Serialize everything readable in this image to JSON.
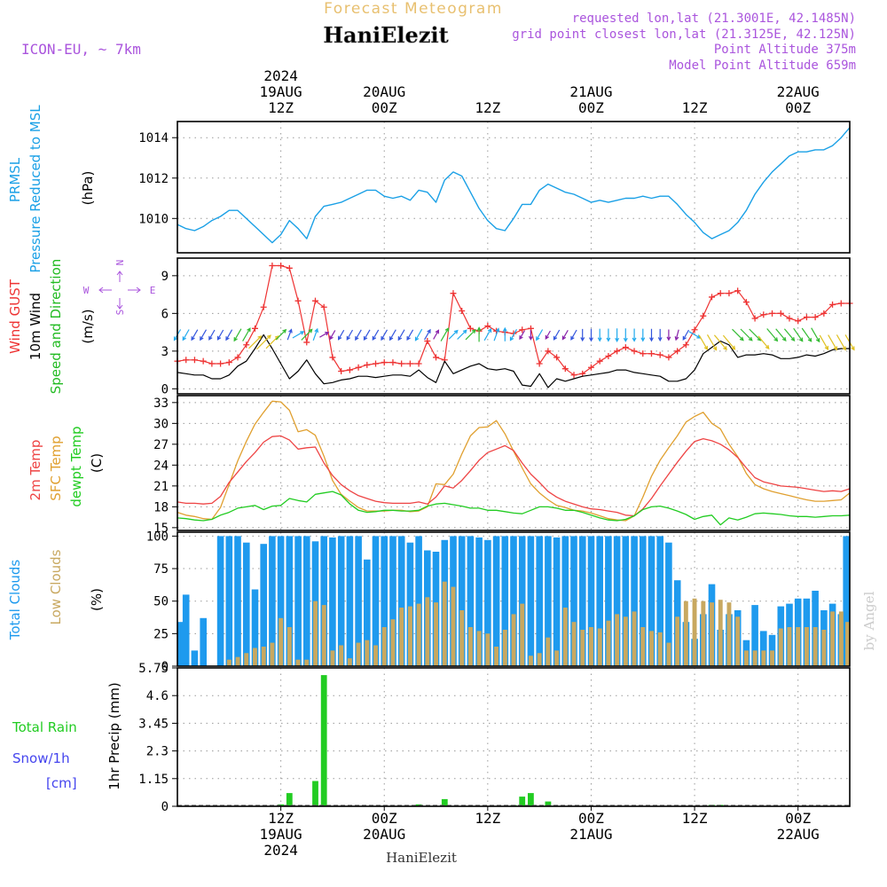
{
  "header": {
    "product": "Forecast Meteogram",
    "station": "HaniElezit",
    "model": "ICON-EU, ~ 7km",
    "requested": "requested lon,lat (21.3001E, 42.1485N)",
    "gridpoint": "grid point closest lon,lat (21.3125E, 42.125N)",
    "point_alt": "Point Altitude 375m",
    "model_alt": "Model Point Altitude 659m",
    "footer_station": "HaniElezit",
    "credit": "by Angel"
  },
  "colors": {
    "pressure": "#1aa0e6",
    "gust": "#ee3333",
    "wind": "#000000",
    "t2m": "#ee4444",
    "sfc": "#e0a030",
    "dewpt": "#22cc22",
    "total_cloud": "#1e9aee",
    "low_cloud": "#c8a860",
    "rain": "#22cc22",
    "snow": "#4444ee",
    "title_gold": "#e8c070",
    "purple": "#aa55dd"
  },
  "time_axis": {
    "start_hour": 0,
    "end_hour": 78,
    "ticks": [
      {
        "hour": 12,
        "top": [
          "2024",
          "19AUG",
          "12Z"
        ],
        "bottom": [
          "12Z",
          "19AUG",
          "2024"
        ]
      },
      {
        "hour": 24,
        "top": [
          "20AUG",
          "00Z"
        ],
        "bottom": [
          "00Z",
          "20AUG"
        ]
      },
      {
        "hour": 36,
        "top": [
          "12Z"
        ],
        "bottom": [
          "12Z"
        ]
      },
      {
        "hour": 48,
        "top": [
          "21AUG",
          "00Z"
        ],
        "bottom": [
          "00Z",
          "21AUG"
        ]
      },
      {
        "hour": 60,
        "top": [
          "12Z"
        ],
        "bottom": [
          "12Z"
        ]
      },
      {
        "hour": 72,
        "top": [
          "22AUG",
          "00Z"
        ],
        "bottom": [
          "00Z",
          "22AUG"
        ]
      }
    ]
  },
  "panels": {
    "pressure": {
      "labels": [
        "PRMSL",
        "Pressure Reduced to MSL",
        "(hPa)"
      ],
      "ylim": [
        1008.3,
        1014.8
      ],
      "ticks": [
        "1010",
        "1012",
        "1014"
      ]
    },
    "wind": {
      "labels": [
        "Wind GUST",
        "10m Wind",
        "Speed and Direction",
        "(m/s)"
      ],
      "compass": [
        "N",
        "W",
        "E",
        "S"
      ],
      "ylim": [
        -0.4,
        10.4
      ],
      "ticks": [
        "0",
        "3",
        "6",
        "9"
      ]
    },
    "temp": {
      "labels": [
        "2m Temp",
        "SFC Temp",
        "dewpt Temp",
        "(C)"
      ],
      "ylim": [
        14.6,
        34.0
      ],
      "ticks": [
        "15",
        "18",
        "21",
        "24",
        "27",
        "30",
        "33"
      ]
    },
    "cloud": {
      "labels": [
        "Total Clouds",
        "Low Clouds",
        "(%)"
      ],
      "ylim": [
        0,
        103
      ],
      "ticks": [
        "0",
        "25",
        "50",
        "75",
        "100"
      ]
    },
    "precip": {
      "labels": [
        "Total  Rain",
        "Snow/1h",
        "[cm]",
        "1hr Precip (mm)"
      ],
      "ylim": [
        0,
        5.75
      ],
      "ticks": [
        "0",
        "1.15",
        "2.3",
        "3.45",
        "4.6",
        "5.75"
      ]
    }
  },
  "chart_data": [
    {
      "type": "line",
      "name": "PRMSL",
      "x_unit": "forecast hour",
      "x": [
        0,
        1,
        2,
        3,
        4,
        5,
        6,
        7,
        8,
        9,
        10,
        11,
        12,
        13,
        14,
        15,
        16,
        17,
        18,
        19,
        20,
        21,
        22,
        23,
        24,
        25,
        26,
        27,
        28,
        29,
        30,
        31,
        32,
        33,
        34,
        35,
        36,
        37,
        38,
        39,
        40,
        41,
        42,
        43,
        44,
        45,
        46,
        47,
        48,
        49,
        50,
        51,
        52,
        53,
        54,
        55,
        56,
        57,
        58,
        59,
        60,
        61,
        62,
        63,
        64,
        65,
        66,
        67,
        68,
        69,
        70,
        71,
        72,
        73,
        74,
        75,
        76,
        77,
        78
      ],
      "values": [
        1009.7,
        1009.5,
        1009.4,
        1009.6,
        1009.9,
        1010.1,
        1010.4,
        1010.4,
        1010.0,
        1009.6,
        1009.2,
        1008.8,
        1009.2,
        1009.9,
        1009.5,
        1009.0,
        1010.1,
        1010.6,
        1010.7,
        1010.8,
        1011.0,
        1011.2,
        1011.4,
        1011.4,
        1011.1,
        1011.0,
        1011.1,
        1010.9,
        1011.4,
        1011.3,
        1010.8,
        1011.9,
        1012.3,
        1012.1,
        1011.3,
        1010.5,
        1009.9,
        1009.5,
        1009.4,
        1010.0,
        1010.7,
        1010.7,
        1011.4,
        1011.7,
        1011.5,
        1011.3,
        1011.2,
        1011.0,
        1010.8,
        1010.9,
        1010.8,
        1010.9,
        1011.0,
        1011.0,
        1011.1,
        1011.0,
        1011.1,
        1011.1,
        1010.7,
        1010.2,
        1009.8,
        1009.3,
        1009.0,
        1009.2,
        1009.4,
        1009.8,
        1010.4,
        1011.2,
        1011.8,
        1012.3,
        1012.7,
        1013.1,
        1013.3,
        1013.3,
        1013.4,
        1013.4,
        1013.6,
        1014.0,
        1014.5
      ]
    },
    {
      "type": "line",
      "name": "Wind GUST",
      "x_unit": "forecast hour",
      "values": [
        2.2,
        2.3,
        2.3,
        2.2,
        2.0,
        2.0,
        2.1,
        2.5,
        3.5,
        4.8,
        6.5,
        9.8,
        9.8,
        9.6,
        7.0,
        3.7,
        7.0,
        6.5,
        2.5,
        1.4,
        1.5,
        1.7,
        1.9,
        2.0,
        2.1,
        2.1,
        2.0,
        2.0,
        2.0,
        3.8,
        2.5,
        2.3,
        7.6,
        6.2,
        4.8,
        4.6,
        5.0,
        4.6,
        4.5,
        4.4,
        4.7,
        4.8,
        2.0,
        3.0,
        2.5,
        1.6,
        1.1,
        1.2,
        1.7,
        2.2,
        2.6,
        3.0,
        3.3,
        3.0,
        2.8,
        2.8,
        2.7,
        2.5,
        3.0,
        3.5,
        4.7,
        5.8,
        7.3,
        7.6,
        7.6,
        7.8,
        6.9,
        5.6,
        5.9,
        6.0,
        6.0,
        5.6,
        5.4,
        5.7,
        5.7,
        6.0,
        6.7,
        6.8,
        6.8
      ]
    },
    {
      "type": "line",
      "name": "10m Wind",
      "x_unit": "forecast hour",
      "values": [
        1.3,
        1.2,
        1.1,
        1.1,
        0.8,
        0.8,
        1.1,
        1.8,
        2.2,
        3.2,
        4.3,
        3.2,
        2.0,
        0.8,
        1.4,
        2.3,
        1.2,
        0.4,
        0.5,
        0.7,
        0.8,
        1.0,
        1.0,
        0.9,
        1.0,
        1.1,
        1.1,
        1.0,
        1.5,
        0.9,
        0.5,
        2.2,
        1.2,
        1.5,
        1.8,
        2.0,
        1.6,
        1.5,
        1.6,
        1.4,
        0.3,
        0.2,
        1.2,
        0.1,
        0.8,
        0.6,
        0.8,
        1.0,
        1.1,
        1.2,
        1.3,
        1.5,
        1.5,
        1.3,
        1.2,
        1.1,
        1.0,
        0.6,
        0.6,
        0.8,
        1.5,
        2.8,
        3.3,
        3.8,
        3.5,
        2.5,
        2.7,
        2.7,
        2.8,
        2.7,
        2.4,
        2.4,
        2.5,
        2.7,
        2.6,
        2.8,
        3.1,
        3.2,
        3.2
      ]
    },
    {
      "type": "line",
      "name": "2m Temp",
      "x_unit": "forecast hour",
      "values": [
        18.7,
        18.5,
        18.5,
        18.4,
        18.5,
        19.5,
        21.5,
        23.0,
        24.5,
        25.8,
        27.3,
        28.1,
        28.2,
        27.6,
        26.3,
        26.5,
        26.6,
        24.3,
        22.5,
        21.2,
        20.3,
        19.6,
        19.2,
        18.8,
        18.6,
        18.5,
        18.5,
        18.5,
        18.7,
        18.4,
        19.4,
        21.0,
        20.7,
        21.8,
        23.2,
        24.7,
        25.8,
        26.3,
        26.8,
        26.1,
        24.3,
        22.7,
        21.5,
        20.2,
        19.4,
        18.8,
        18.4,
        18.0,
        17.7,
        17.6,
        17.4,
        17.2,
        16.8,
        16.7,
        17.7,
        19.2,
        21.0,
        22.7,
        24.4,
        26.0,
        27.4,
        27.8,
        27.5,
        27.0,
        26.2,
        25.1,
        23.6,
        22.2,
        21.6,
        21.3,
        21.0,
        20.9,
        20.8,
        20.6,
        20.4,
        20.2,
        20.3,
        20.2,
        20.6
      ]
    },
    {
      "type": "line",
      "name": "SFC Temp",
      "x_unit": "forecast hour",
      "values": [
        17.2,
        16.8,
        16.6,
        16.3,
        16.2,
        17.9,
        21.2,
        24.6,
        27.4,
        29.9,
        31.6,
        33.2,
        33.1,
        31.9,
        28.8,
        29.1,
        28.3,
        25.3,
        21.8,
        19.8,
        18.8,
        17.9,
        17.4,
        17.4,
        17.4,
        17.5,
        17.5,
        17.3,
        17.4,
        18.0,
        21.3,
        21.2,
        22.7,
        25.6,
        28.2,
        29.4,
        29.5,
        30.4,
        28.5,
        26.0,
        23.6,
        21.3,
        20.0,
        19.0,
        18.2,
        17.9,
        17.5,
        17.4,
        17.1,
        16.7,
        16.3,
        16.1,
        16.0,
        16.7,
        19.4,
        22.4,
        24.7,
        26.5,
        28.2,
        30.2,
        31.0,
        31.6,
        30.0,
        29.2,
        27.0,
        25.2,
        22.8,
        21.2,
        20.6,
        20.2,
        19.9,
        19.6,
        19.3,
        19.0,
        18.8,
        18.8,
        18.9,
        19.0,
        20.0
      ]
    },
    {
      "type": "line",
      "name": "dewpt Temp",
      "x_unit": "forecast hour",
      "values": [
        16.4,
        16.3,
        16.1,
        16.0,
        16.2,
        16.8,
        17.2,
        17.8,
        18.0,
        18.2,
        17.6,
        18.1,
        18.2,
        19.2,
        18.9,
        18.7,
        19.8,
        20.0,
        20.2,
        19.7,
        18.4,
        17.5,
        17.2,
        17.3,
        17.5,
        17.5,
        17.4,
        17.4,
        17.5,
        18.1,
        18.4,
        18.5,
        18.3,
        18.1,
        17.8,
        17.8,
        17.5,
        17.5,
        17.3,
        17.1,
        17.0,
        17.5,
        18.0,
        18.0,
        17.8,
        17.5,
        17.5,
        17.2,
        16.8,
        16.4,
        16.1,
        16.0,
        16.2,
        16.7,
        17.6,
        18.0,
        18.1,
        17.8,
        17.4,
        16.9,
        16.2,
        16.6,
        16.8,
        15.4,
        16.4,
        16.1,
        16.5,
        17.0,
        17.1,
        17.0,
        16.9,
        16.7,
        16.6,
        16.6,
        16.5,
        16.6,
        16.7,
        16.7,
        16.8
      ]
    },
    {
      "type": "bar",
      "name": "Total Clouds",
      "x_unit": "forecast hour",
      "values": [
        34,
        55,
        12,
        37,
        0,
        100,
        100,
        100,
        95,
        59,
        94,
        100,
        100,
        100,
        100,
        100,
        96,
        100,
        99,
        100,
        100,
        100,
        82,
        100,
        100,
        100,
        100,
        95,
        100,
        89,
        88,
        97,
        100,
        100,
        100,
        99,
        97,
        100,
        100,
        100,
        100,
        100,
        100,
        100,
        99,
        100,
        100,
        100,
        100,
        100,
        100,
        100,
        100,
        100,
        100,
        100,
        100,
        95,
        66,
        34,
        21,
        40,
        63,
        28,
        40,
        43,
        20,
        47,
        27,
        24,
        46,
        48,
        52,
        52,
        58,
        43,
        48,
        40,
        100
      ]
    },
    {
      "type": "bar",
      "name": "Low Clouds",
      "x_unit": "forecast hour",
      "values": [
        0,
        0,
        0,
        0,
        0,
        0,
        5,
        7,
        10,
        14,
        15,
        18,
        37,
        30,
        5,
        5,
        50,
        47,
        12,
        16,
        6,
        18,
        20,
        16,
        30,
        36,
        45,
        46,
        48,
        53,
        49,
        65,
        61,
        43,
        30,
        27,
        25,
        15,
        28,
        40,
        48,
        8,
        10,
        22,
        12,
        45,
        34,
        28,
        30,
        29,
        35,
        40,
        38,
        42,
        30,
        27,
        26,
        18,
        38,
        50,
        52,
        50,
        49,
        51,
        49,
        38,
        12,
        12,
        12,
        12,
        29,
        30,
        30,
        30,
        30,
        28,
        42,
        42,
        34
      ]
    },
    {
      "type": "bar",
      "name": "1hr Precip",
      "x_unit": "forecast hour",
      "values": [
        0,
        0,
        0,
        0,
        0,
        0,
        0,
        0,
        0,
        0,
        0,
        0,
        0.08,
        0.55,
        0,
        0,
        1.05,
        5.45,
        0,
        0,
        0,
        0,
        0,
        0,
        0,
        0,
        0,
        0,
        0.08,
        0,
        0,
        0.3,
        0,
        0,
        0,
        0,
        0,
        0,
        0,
        0.05,
        0.4,
        0.55,
        0,
        0.2,
        0,
        0,
        0,
        0,
        0,
        0,
        0,
        0,
        0,
        0,
        0,
        0,
        0,
        0,
        0,
        0,
        0,
        0,
        0.06,
        0.06,
        0,
        0,
        0,
        0,
        0,
        0,
        0,
        0,
        0,
        0,
        0,
        0,
        0,
        0,
        0
      ]
    },
    {
      "type": "vector",
      "name": "10m Wind Direction",
      "x_unit": "forecast hour",
      "directions_from_deg": [
        30,
        30,
        30,
        30,
        30,
        30,
        30,
        30,
        210,
        225,
        225,
        225,
        225,
        200,
        240,
        225,
        200,
        240,
        30,
        30,
        30,
        30,
        30,
        30,
        30,
        30,
        30,
        30,
        30,
        210,
        210,
        210,
        225,
        225,
        225,
        180,
        210,
        200,
        180,
        30,
        30,
        0,
        30,
        30,
        30,
        30,
        30,
        0,
        0,
        0,
        0,
        0,
        0,
        0,
        0,
        0,
        0,
        0,
        15,
        30,
        300,
        330,
        330,
        320,
        320,
        315,
        315,
        315,
        320,
        320,
        320,
        320,
        325,
        325,
        330,
        330,
        330,
        330,
        330
      ]
    }
  ]
}
